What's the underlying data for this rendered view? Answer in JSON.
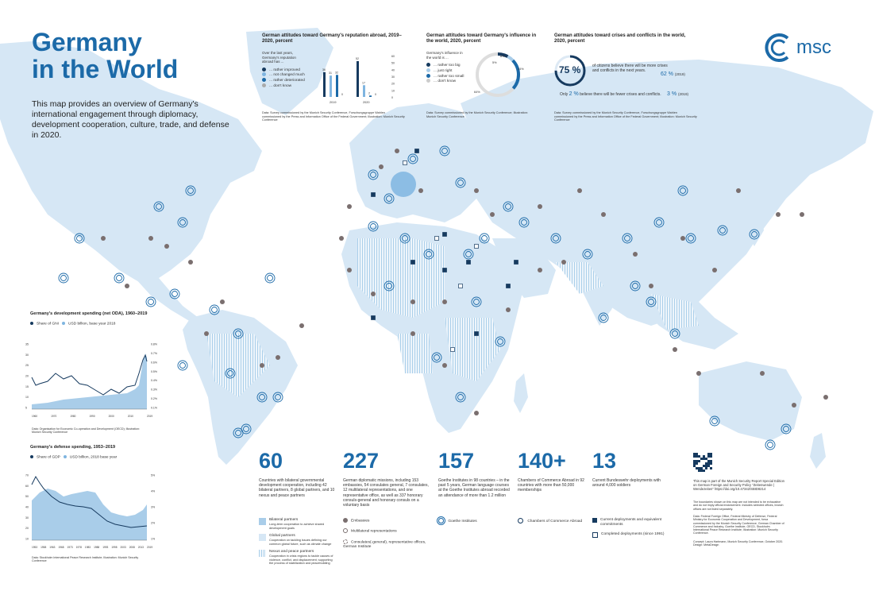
{
  "title_line1": "Germany",
  "title_line2": "in the World",
  "intro": "This map provides an overview of Germany's international engagement through diplomacy, development cooperation, culture, trade, and defense in 2020.",
  "logo_text": "msc",
  "reputation": {
    "title": "German attitudes toward Germany's reputation abroad, 2019–2020, percent",
    "question": "Over the last years, Germany's reputation abroad has ...",
    "options": [
      "... rather improved",
      "... not changed much",
      "... rather deteriorated",
      "... don't know"
    ],
    "years": [
      "2019",
      "2020"
    ],
    "values_2019": [
      36,
      31,
      32,
      0
    ],
    "values_2020": [
      52,
      17,
      2,
      0
    ],
    "labels_2019": [
      "36",
      "31",
      "32",
      "0"
    ],
    "labels_2020": [
      "52",
      "17",
      "2",
      "0"
    ],
    "axis": [
      "60",
      "50",
      "40",
      "30",
      "20",
      "10",
      "0"
    ],
    "source": "Data: Survey commissioned by the Munich Security Conference, Forschungsgruppe Wahlen commissioned by the Press and Information Office of the Federal Government; Illustration: Munich Security Conference"
  },
  "influence": {
    "title": "German attitudes toward Germany's influence in the world, 2020, percent",
    "question": "Germany's influence in the world is ...",
    "options": [
      "... rather too big",
      "... just right",
      "... rather too small",
      "... don't know"
    ],
    "values": [
      8,
      5,
      24,
      64
    ],
    "labels": [
      "8%",
      "5%",
      "24%",
      "64%"
    ],
    "source": "Data: Survey commissioned by the Munich Security Conference; Illustration: Munich Security Conference"
  },
  "crises": {
    "title": "German attitudes toward crises and conflicts in the world, 2020, percent",
    "main_value": "75 %",
    "main_text": "of citizens believe there will be more crises and conflicts in the next years.",
    "compare_main": "62 %",
    "compare_main_year": "(2019)",
    "second_prefix": "Only",
    "second_value": "2 %",
    "second_text": "believe there will be fewer crises and conflicts.",
    "compare_second": "3 %",
    "compare_second_year": "(2019)",
    "source": "Data: Survey commissioned by the Munich Security Conference, Forschungsgruppe Wahlen commissioned by the Press and Information Office of the Federal Government; Illustration: Munich Security Conference"
  },
  "dev_spending": {
    "title": "Germany's development spending (net ODA), 1960–2019",
    "legend": [
      "Share of GNI",
      "USD billion, base year 2018"
    ],
    "left_axis": [
      "35",
      "30",
      "25",
      "20",
      "15",
      "10",
      "5"
    ],
    "right_axis": [
      "0.8%",
      "0.7%",
      "0.6%",
      "0.5%",
      "0.4%",
      "0.3%",
      "0.2%",
      "0.1%"
    ],
    "x_axis": [
      "1960",
      "1970",
      "1980",
      "1990",
      "2000",
      "2010",
      "2019"
    ],
    "source": "Data: Organisation for Economic Co-operation and Development (OECD); Illustration: Munich Security Conference"
  },
  "def_spending": {
    "title": "Germany's defense spending, 1953–2019",
    "legend": [
      "Share of GDP",
      "USD billion, 2018 base year"
    ],
    "left_axis": [
      "70",
      "60",
      "50",
      "40",
      "30",
      "20",
      "10"
    ],
    "right_axis": [
      "5%",
      "4%",
      "3%",
      "2%",
      "1%"
    ],
    "x_axis": [
      "1953",
      "1958",
      "1963",
      "1968",
      "1973",
      "1978",
      "1983",
      "1988",
      "1993",
      "1998",
      "2003",
      "2008",
      "2013",
      "2019"
    ],
    "source": "Data: Stockholm International Peace Research Institute; Illustration: Munich Security Conference"
  },
  "stats": [
    {
      "num": "60",
      "desc": "Countries with bilateral governmental development cooperation, including 42 bilateral partners, 8 global partners, and 10 nexus and peace partners"
    },
    {
      "num": "227",
      "desc": "German diplomatic missions, including 153 embassies, 54 consulates general, 7 consulates, 12 multilateral representations, and one representative office, as well as 337 honorary consuls-general and honorary consuls on a voluntary basis"
    },
    {
      "num": "157",
      "desc": "Goethe Institutes in 98 countries – in the past 5 years, German language courses at the Goethe Institutes abroad recorded an attendance of more than 1.2 million"
    },
    {
      "num": "140+",
      "desc": "Chambers of Commerce Abroad in 92 countries with more than 50,000 memberships"
    },
    {
      "num": "13",
      "desc": "Current Bundeswehr deployments with around 4,000 soldiers"
    }
  ],
  "legend_dev": [
    {
      "label": "Bilateral partners",
      "sub": "Long-term cooperation to achieve shared development goals"
    },
    {
      "label": "Global partners",
      "sub": "Cooperation on tackling issues defining our common global future, such as climate change"
    },
    {
      "label": "Nexus and peace partners",
      "sub": "Cooperation in crisis regions to tackle causes of violence, conflict, and displacement; supporting the process of stabilization and peacebuilding"
    }
  ],
  "legend_dip": [
    "Embassies",
    "Multilateral representations",
    "Consulates(-general), representative offices, German Institute"
  ],
  "legend_goethe": "Goethe Institutes",
  "legend_chambers": "Chambers of Commerce Abroad",
  "legend_deploy": [
    "Current deployments and equivalent commitments",
    "Completed deployments (since 1991)"
  ],
  "sidebar_note": "This map is part of the Munich Security Report Special Edition on German Foreign and Security Policy \"Zeitenwende | Wendezeiten\" https://doi.org/10.47342/SBID8214",
  "sidebar_disclaimer": "The boundaries shown on this map are not intended to be exhaustive and do not imply official endorsement. Includes selected offices, branch offices are not listed separately.",
  "sidebar_data": "Data: Federal Foreign Office, Federal Ministry of Defense, Federal Ministry for Economic Cooperation and Development, forsa commissioned by the Munich Security Conference, German Chamber of Commerce and Industry, Goethe Institute, OECD, Stockholm International Peace Research Institute; Illustration: Munich Security Conference.",
  "sidebar_concept": "Concept: Laura Hartmann, Munich Security Conference, October 2020. Design: MetaDesign",
  "colors": {
    "accent": "#1c6aa8",
    "land": "#cfe3f4",
    "land_dark": "#a9cde9",
    "germany": "#7fb5e0",
    "embassy": "#7a6f6f",
    "navy": "#163a5f"
  }
}
